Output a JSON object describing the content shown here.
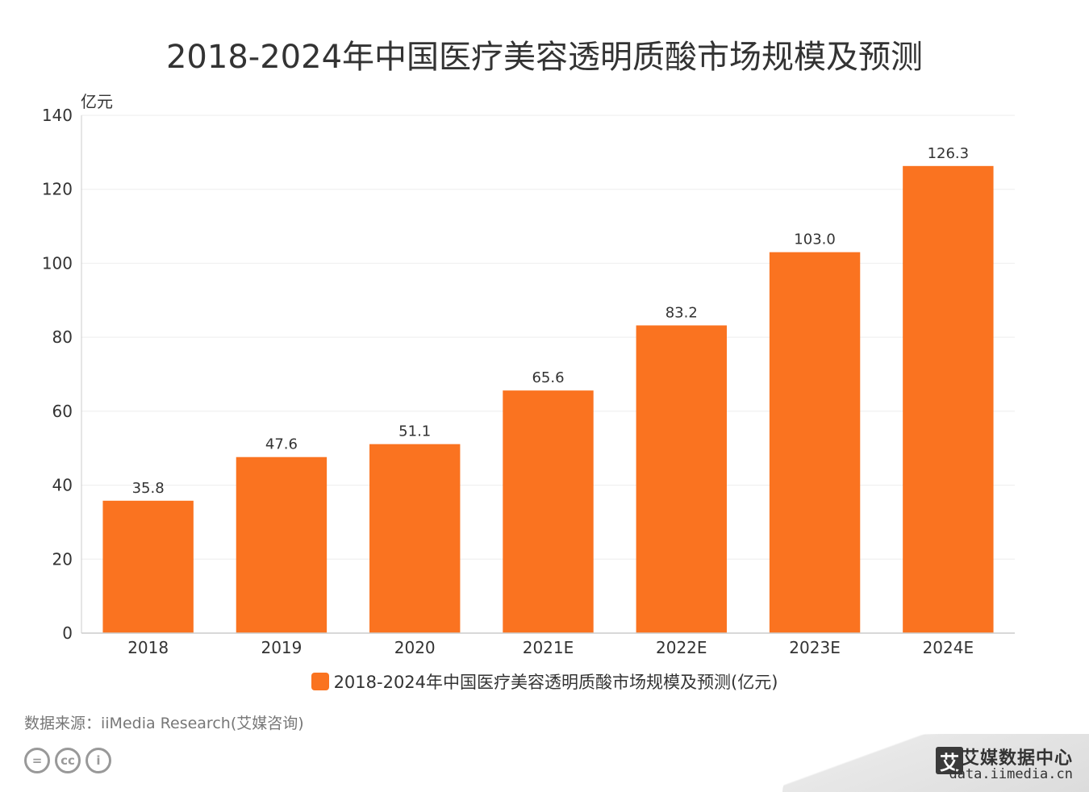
{
  "chart_data": {
    "type": "bar",
    "title": "2018-2024年中国医疗美容透明质酸市场规模及预测",
    "ylabel": "亿元",
    "xlabel": "",
    "categories": [
      "2018",
      "2019",
      "2020",
      "2021E",
      "2022E",
      "2023E",
      "2024E"
    ],
    "series": [
      {
        "name": "2018-2024年中国医疗美容透明质酸市场规模及预测(亿元)",
        "values": [
          35.8,
          47.6,
          51.1,
          65.6,
          83.2,
          103.0,
          126.3
        ],
        "labels": [
          "35.8",
          "47.6",
          "51.1",
          "65.6",
          "83.2",
          "103.0",
          "126.3"
        ]
      }
    ],
    "ylim": [
      0,
      140
    ],
    "yticks": [
      0,
      20,
      40,
      60,
      80,
      100,
      120,
      140
    ],
    "grid": true,
    "legend_position": "bottom",
    "bar_color": "#fa7320"
  },
  "source": "数据来源：iiMedia Research(艾媒咨询)",
  "license": [
    "=",
    "cc",
    "i"
  ],
  "brand": {
    "logo_char": "艾",
    "name": "艾媒数据中心",
    "url": "data.iimedia.cn"
  },
  "colors": {
    "bar": "#fa7320",
    "grid": "#eeeeee",
    "axis": "#cccccc"
  }
}
